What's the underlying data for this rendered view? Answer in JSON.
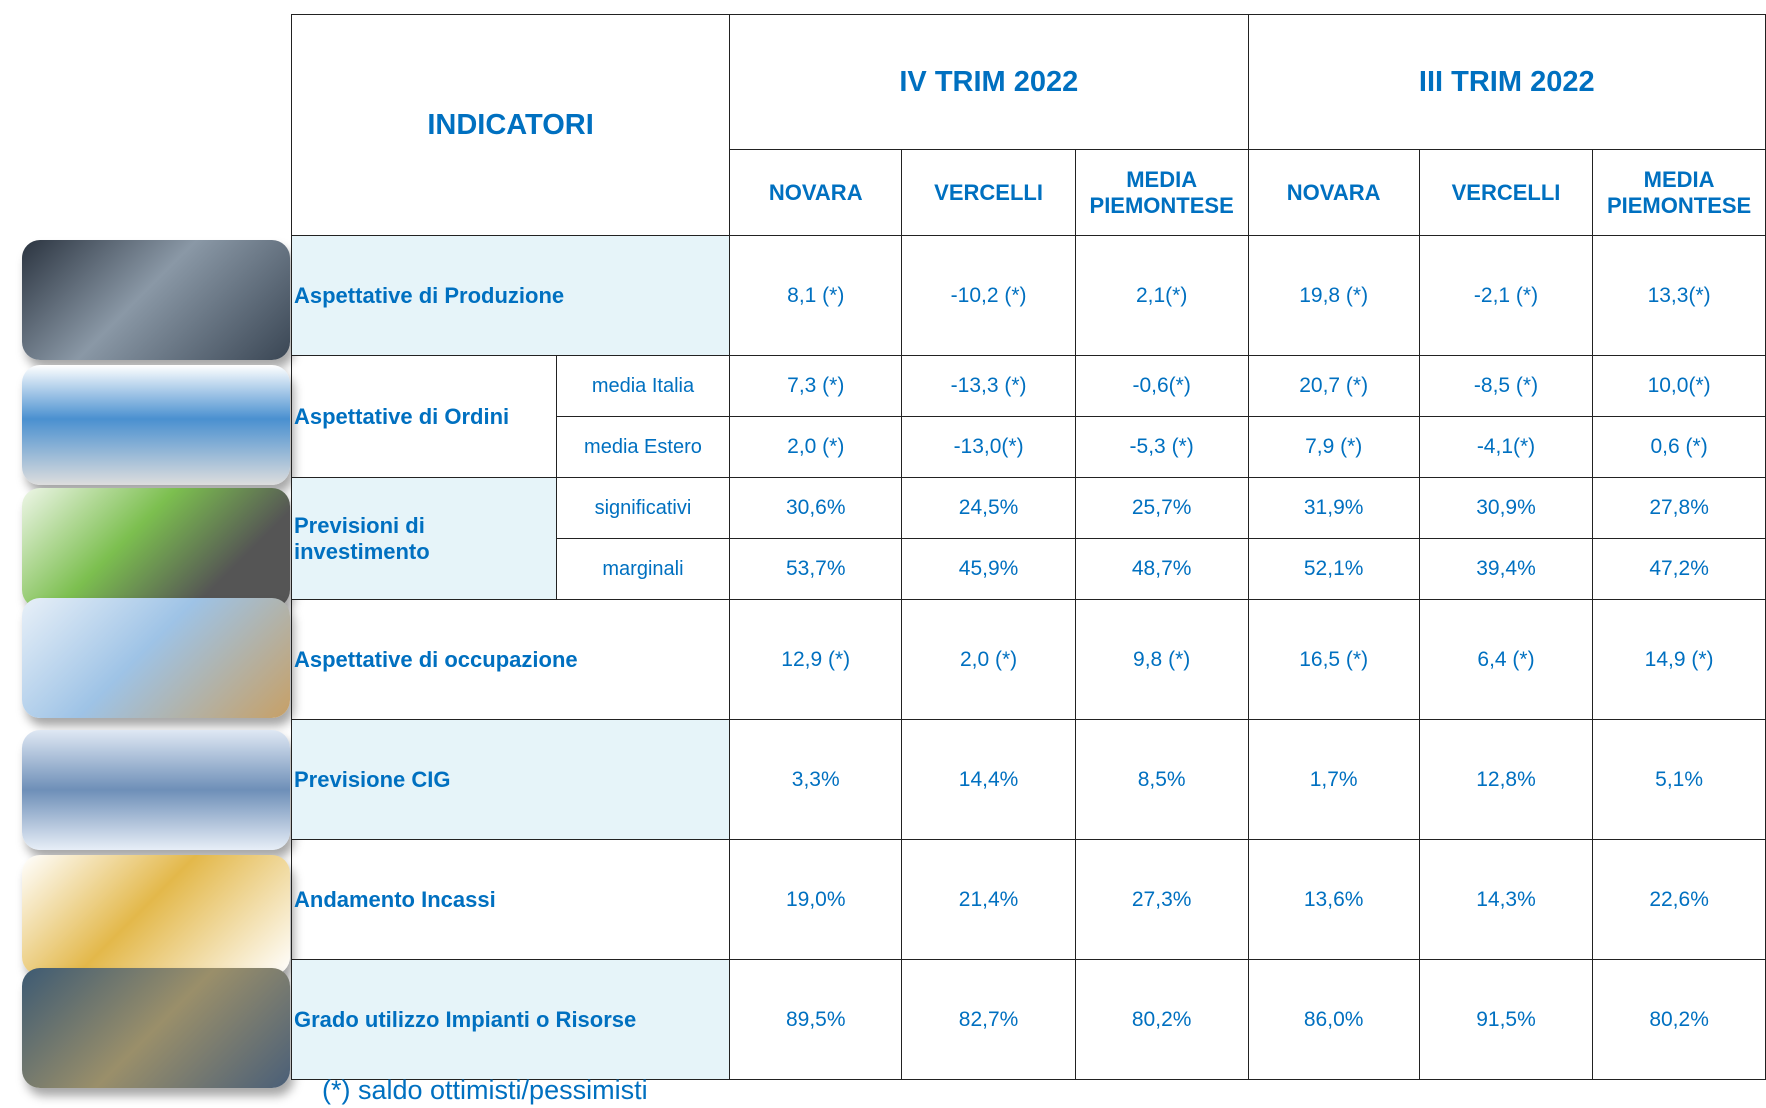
{
  "header": {
    "title": "INDICATORI",
    "periods": [
      {
        "label": "IV TRIM 2022",
        "columns": [
          "NOVARA",
          "VERCELLI",
          "MEDIA PIEMONTESE"
        ]
      },
      {
        "label": "III TRIM 2022",
        "columns": [
          "NOVARA",
          "VERCELLI",
          "MEDIA PIEMONTESE"
        ]
      }
    ]
  },
  "table": {
    "groups": [
      {
        "label": "Aspettative di Produzione",
        "items": [
          {
            "values": [
              "8,1 (*)",
              "-10,2 (*)",
              "2,1(*)",
              "19,8 (*)",
              "-2,1 (*)",
              "13,3(*)"
            ]
          }
        ]
      },
      {
        "label": "Aspettative di Ordini",
        "items": [
          {
            "sublabel": "media Italia",
            "values": [
              "7,3 (*)",
              "-13,3 (*)",
              "-0,6(*)",
              "20,7 (*)",
              "-8,5 (*)",
              "10,0(*)"
            ]
          },
          {
            "sublabel": "media Estero",
            "values": [
              "2,0 (*)",
              "-13,0(*)",
              "-5,3 (*)",
              "7,9 (*)",
              "-4,1(*)",
              "0,6 (*)"
            ]
          }
        ]
      },
      {
        "label": "Previsioni di investimento",
        "items": [
          {
            "sublabel": "significativi",
            "values": [
              "30,6%",
              "24,5%",
              "25,7%",
              "31,9%",
              "30,9%",
              "27,8%"
            ]
          },
          {
            "sublabel": "marginali",
            "values": [
              "53,7%",
              "45,9%",
              "48,7%",
              "52,1%",
              "39,4%",
              "47,2%"
            ]
          }
        ]
      },
      {
        "label": "Aspettative di occupazione",
        "items": [
          {
            "values": [
              "12,9 (*)",
              "2,0 (*)",
              "9,8 (*)",
              "16,5 (*)",
              "6,4 (*)",
              "14,9 (*)"
            ]
          }
        ]
      },
      {
        "label": "Previsione CIG",
        "items": [
          {
            "values": [
              "3,3%",
              "14,4%",
              "8,5%",
              "1,7%",
              "12,8%",
              "5,1%"
            ]
          }
        ]
      },
      {
        "label": "Andamento Incassi",
        "items": [
          {
            "values": [
              "19,0%",
              "21,4%",
              "27,3%",
              "13,6%",
              "14,3%",
              "22,6%"
            ]
          }
        ]
      },
      {
        "label": "Grado utilizzo Impianti o Risorse",
        "items": [
          {
            "values": [
              "89,5%",
              "82,7%",
              "80,2%",
              "86,0%",
              "91,5%",
              "80,2%"
            ]
          }
        ]
      }
    ]
  },
  "footnote": "(*) saldo ottimisti/pessimisti"
}
